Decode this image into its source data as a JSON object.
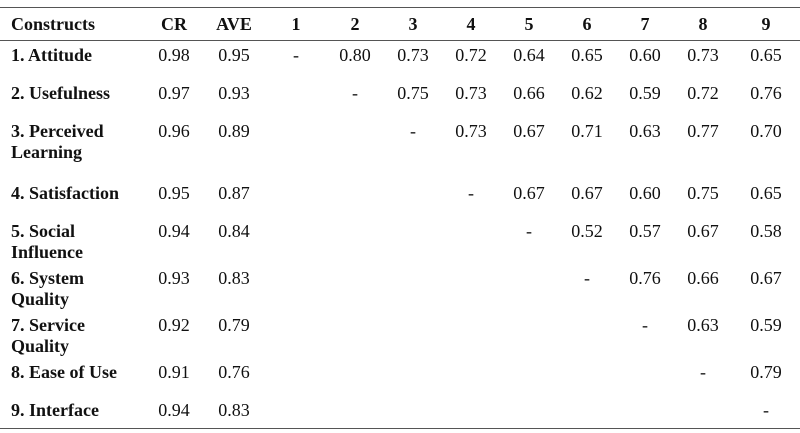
{
  "table": {
    "headers": [
      "Constructs",
      "CR",
      "AVE",
      "1",
      "2",
      "3",
      "4",
      "5",
      "6",
      "7",
      "8",
      "9"
    ],
    "rows": [
      {
        "construct": "1. Attitude",
        "cr": "0.98",
        "ave": "0.95",
        "cells": [
          "-",
          "0.80",
          "0.73",
          "0.72",
          "0.64",
          "0.65",
          "0.60",
          "0.73",
          "0.65"
        ]
      },
      {
        "construct": "2. Usefulness",
        "cr": "0.97",
        "ave": "0.93",
        "cells": [
          "",
          "-",
          "0.75",
          "0.73",
          "0.66",
          "0.62",
          "0.59",
          "0.72",
          "0.76"
        ]
      },
      {
        "construct": "3. Perceived Learning",
        "cr": "0.96",
        "ave": "0.89",
        "cells": [
          "",
          "",
          "-",
          "0.73",
          "0.67",
          "0.71",
          "0.63",
          "0.77",
          "0.70"
        ]
      },
      {
        "construct": "4. Satisfaction",
        "cr": "0.95",
        "ave": "0.87",
        "cells": [
          "",
          "",
          "",
          "-",
          "0.67",
          "0.67",
          "0.60",
          "0.75",
          "0.65"
        ]
      },
      {
        "construct": "5. Social Influence",
        "cr": "0.94",
        "ave": "0.84",
        "cells": [
          "",
          "",
          "",
          "",
          "-",
          "0.52",
          "0.57",
          "0.67",
          "0.58"
        ]
      },
      {
        "construct": "6. System Quality",
        "cr": "0.93",
        "ave": "0.83",
        "cells": [
          "",
          "",
          "",
          "",
          "",
          "-",
          "0.76",
          "0.66",
          "0.67"
        ]
      },
      {
        "construct": "7. Service Quality",
        "cr": "0.92",
        "ave": "0.79",
        "cells": [
          "",
          "",
          "",
          "",
          "",
          "",
          "-",
          "0.63",
          "0.59"
        ]
      },
      {
        "construct": "8. Ease of Use",
        "cr": "0.91",
        "ave": "0.76",
        "cells": [
          "",
          "",
          "",
          "",
          "",
          "",
          "",
          "-",
          "0.79"
        ]
      },
      {
        "construct": "9. Interface",
        "cr": "0.94",
        "ave": "0.83",
        "cells": [
          "",
          "",
          "",
          "",
          "",
          "",
          "",
          "",
          "-"
        ]
      }
    ]
  }
}
